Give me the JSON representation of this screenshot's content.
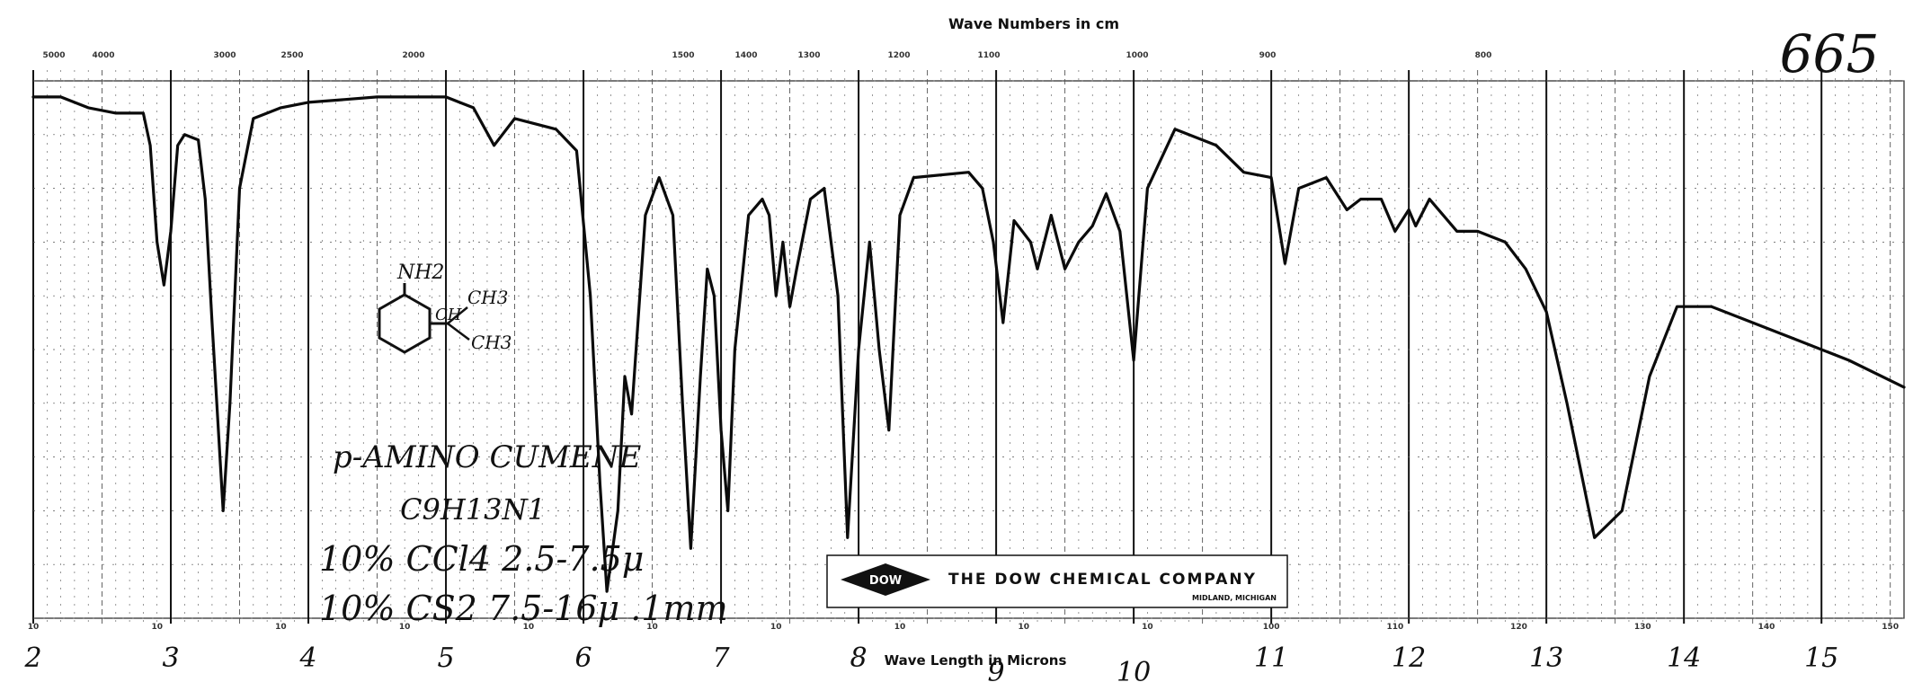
{
  "page": {
    "top_title": "Wave Numbers in cm",
    "top_ticks": [
      "5000",
      "4000",
      "3000",
      "2500",
      "2000",
      "1500",
      "1400",
      "1300",
      "1200",
      "1100",
      "1000",
      "900",
      "800"
    ],
    "sample_number": "665",
    "compound_name": "p-AMINO CUMENE",
    "formula": "C9H13N1",
    "condition_1": "10% CCl4 2.5-7.5μ",
    "condition_2": "10% CS2 7.5-16μ .1mm",
    "structure_labels": [
      "NH2",
      "CH3",
      "CH",
      "CH3"
    ],
    "company": "THE DOW CHEMICAL COMPANY",
    "company_city": "MIDLAND, MICHIGAN",
    "logo_text": "DOW",
    "bottom_title": "Wave Length in Microns",
    "bottom_small_ticks": [
      "10",
      "10",
      "10",
      "10",
      "10",
      "10",
      "10",
      "10",
      "10",
      "10",
      "100",
      "110",
      "120",
      "130",
      "140",
      "150"
    ]
  },
  "chart_data": {
    "type": "line",
    "title": "",
    "xlabel": "Wave Length in Microns",
    "ylabel": "",
    "xlim": [
      2,
      15.6
    ],
    "ylim": [
      0,
      100
    ],
    "x_tick_labels": [
      "2",
      "3",
      "4",
      "5",
      "6",
      "7",
      "8",
      "9",
      "10",
      "11",
      "12",
      "13",
      "14",
      "15"
    ],
    "series": [
      {
        "points": [
          [
            2.0,
            97
          ],
          [
            2.2,
            97
          ],
          [
            2.4,
            95
          ],
          [
            2.6,
            94
          ],
          [
            2.8,
            94
          ],
          [
            2.85,
            88
          ],
          [
            2.9,
            70
          ],
          [
            2.95,
            62
          ],
          [
            3.0,
            72
          ],
          [
            3.05,
            88
          ],
          [
            3.1,
            90
          ],
          [
            3.2,
            89
          ],
          [
            3.25,
            78
          ],
          [
            3.3,
            55
          ],
          [
            3.38,
            20
          ],
          [
            3.43,
            40
          ],
          [
            3.5,
            80
          ],
          [
            3.6,
            93
          ],
          [
            3.8,
            95
          ],
          [
            4.0,
            96
          ],
          [
            4.5,
            97
          ],
          [
            5.0,
            97
          ],
          [
            5.2,
            95
          ],
          [
            5.35,
            88
          ],
          [
            5.5,
            93
          ],
          [
            5.8,
            91
          ],
          [
            5.95,
            87
          ],
          [
            6.05,
            60
          ],
          [
            6.12,
            25
          ],
          [
            6.17,
            5
          ],
          [
            6.25,
            20
          ],
          [
            6.3,
            45
          ],
          [
            6.35,
            38
          ],
          [
            6.45,
            75
          ],
          [
            6.55,
            82
          ],
          [
            6.65,
            75
          ],
          [
            6.72,
            40
          ],
          [
            6.78,
            13
          ],
          [
            6.85,
            45
          ],
          [
            6.9,
            65
          ],
          [
            6.95,
            60
          ],
          [
            7.0,
            35
          ],
          [
            7.05,
            20
          ],
          [
            7.1,
            50
          ],
          [
            7.2,
            75
          ],
          [
            7.3,
            78
          ],
          [
            7.35,
            75
          ],
          [
            7.4,
            60
          ],
          [
            7.45,
            70
          ],
          [
            7.5,
            58
          ],
          [
            7.55,
            65
          ],
          [
            7.65,
            78
          ],
          [
            7.75,
            80
          ],
          [
            7.85,
            60
          ],
          [
            7.92,
            15
          ],
          [
            8.0,
            50
          ],
          [
            8.08,
            70
          ],
          [
            8.15,
            50
          ],
          [
            8.22,
            35
          ],
          [
            8.3,
            75
          ],
          [
            8.4,
            82
          ],
          [
            8.8,
            83
          ],
          [
            8.9,
            80
          ],
          [
            8.98,
            70
          ],
          [
            9.05,
            55
          ],
          [
            9.13,
            74
          ],
          [
            9.25,
            70
          ],
          [
            9.3,
            65
          ],
          [
            9.4,
            75
          ],
          [
            9.5,
            65
          ],
          [
            9.6,
            70
          ],
          [
            9.7,
            73
          ],
          [
            9.8,
            79
          ],
          [
            9.9,
            72
          ],
          [
            10.0,
            48
          ],
          [
            10.1,
            80
          ],
          [
            10.3,
            91
          ],
          [
            10.6,
            88
          ],
          [
            10.8,
            83
          ],
          [
            11.0,
            82
          ],
          [
            11.1,
            66
          ],
          [
            11.2,
            80
          ],
          [
            11.4,
            82
          ],
          [
            11.55,
            76
          ],
          [
            11.65,
            78
          ],
          [
            11.8,
            78
          ],
          [
            11.9,
            72
          ],
          [
            12.0,
            76
          ],
          [
            12.05,
            73
          ],
          [
            12.15,
            78
          ],
          [
            12.35,
            72
          ],
          [
            12.5,
            72
          ],
          [
            12.7,
            70
          ],
          [
            12.85,
            65
          ],
          [
            13.0,
            57
          ],
          [
            13.15,
            40
          ],
          [
            13.35,
            15
          ],
          [
            13.55,
            20
          ],
          [
            13.75,
            45
          ],
          [
            13.95,
            58
          ],
          [
            14.2,
            58
          ],
          [
            14.4,
            56
          ],
          [
            14.8,
            52
          ],
          [
            15.2,
            48
          ],
          [
            15.6,
            43
          ]
        ]
      }
    ]
  }
}
